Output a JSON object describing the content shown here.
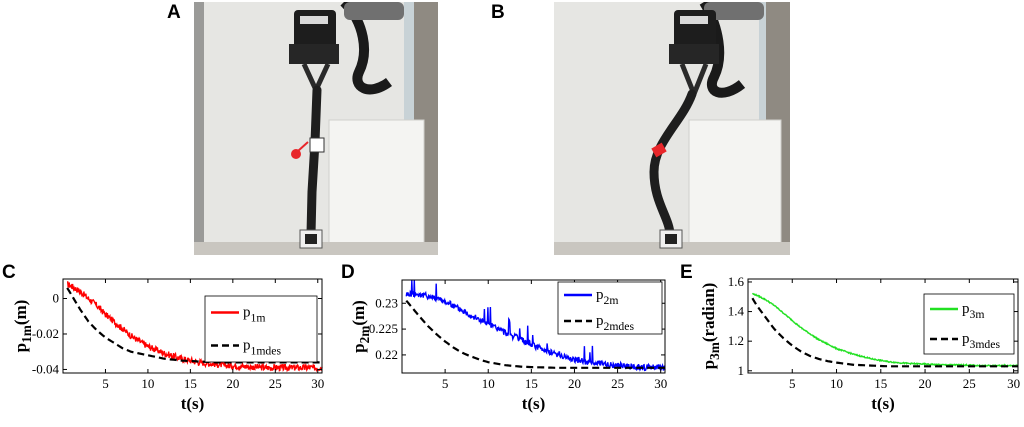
{
  "panels": {
    "A": "A",
    "B": "B",
    "C": "C",
    "D": "D",
    "E": "E"
  },
  "photos": [
    {
      "panel": "A",
      "marker_color": "#e8262a",
      "marker_shape": "round-pin",
      "deformation": "straight"
    },
    {
      "panel": "B",
      "marker_color": "#e8262a",
      "marker_shape": "square-tag",
      "deformation": "curved"
    }
  ],
  "chart_data": [
    {
      "panel": "C",
      "type": "line",
      "ylabel": "p",
      "ylabel_sub": "1m",
      "ylabel_unit": "(m)",
      "xlabel": "t(s)",
      "xlim": [
        0,
        30.5
      ],
      "ylim": [
        -0.042,
        0.011
      ],
      "xticks": [
        5,
        10,
        15,
        20,
        25,
        30
      ],
      "yticks": [
        0,
        -0.02,
        -0.04
      ],
      "ytick_labels": [
        "0",
        "-0.02",
        "-0.04"
      ],
      "grid": false,
      "legend": "right",
      "series": [
        {
          "name": "p",
          "name_sub": "1m",
          "color": "#ff0000",
          "style": "solid-noisy",
          "x": [
            0.5,
            1,
            2,
            3,
            4,
            5,
            6,
            7,
            8,
            9,
            10,
            12,
            14,
            16,
            18,
            20,
            22,
            24,
            26,
            28,
            30.5
          ],
          "y": [
            0.008,
            0.007,
            0.004,
            0.0,
            -0.004,
            -0.009,
            -0.013,
            -0.017,
            -0.021,
            -0.024,
            -0.027,
            -0.031,
            -0.034,
            -0.036,
            -0.037,
            -0.038,
            -0.0385,
            -0.039,
            -0.039,
            -0.039,
            -0.039
          ],
          "noise": 0.0018
        },
        {
          "name": "p",
          "name_sub": "1mdes",
          "color": "#000000",
          "style": "dashed",
          "x": [
            0.5,
            1,
            2,
            3,
            4,
            5,
            6,
            7,
            8,
            9,
            10,
            12,
            14,
            16,
            18,
            20,
            22,
            24,
            26,
            28,
            30.5
          ],
          "y": [
            0.006,
            0.002,
            -0.006,
            -0.013,
            -0.018,
            -0.022,
            -0.025,
            -0.028,
            -0.03,
            -0.031,
            -0.032,
            -0.034,
            -0.035,
            -0.0355,
            -0.036,
            -0.036,
            -0.036,
            -0.036,
            -0.036,
            -0.036,
            -0.036
          ]
        }
      ]
    },
    {
      "panel": "D",
      "type": "line",
      "ylabel": "p",
      "ylabel_sub": "2m",
      "ylabel_unit": "(m)",
      "xlabel": "t(s)",
      "xlim": [
        0,
        30.5
      ],
      "ylim": [
        0.2165,
        0.2345
      ],
      "xticks": [
        5,
        10,
        15,
        20,
        25,
        30
      ],
      "yticks": [
        0.23,
        0.225,
        0.22
      ],
      "ytick_labels": [
        "0.23",
        "0.225",
        "0.22"
      ],
      "grid": false,
      "legend": "top-right",
      "series": [
        {
          "name": "p",
          "name_sub": "2m",
          "color": "#0000ff",
          "style": "solid-noisy-spiky",
          "x": [
            0.5,
            1,
            2,
            3,
            4,
            5,
            6,
            7,
            8,
            9,
            10,
            12,
            14,
            16,
            18,
            20,
            22,
            24,
            26,
            28,
            30.5
          ],
          "y": [
            0.2318,
            0.2318,
            0.2317,
            0.2314,
            0.231,
            0.2303,
            0.2295,
            0.2286,
            0.2277,
            0.2268,
            0.226,
            0.2243,
            0.2228,
            0.2213,
            0.2201,
            0.2191,
            0.2185,
            0.2181,
            0.2178,
            0.2176,
            0.2175
          ],
          "noise": 0.0006
        },
        {
          "name": "p",
          "name_sub": "2mdes",
          "color": "#000000",
          "style": "dashed",
          "x": [
            0.5,
            1,
            2,
            3,
            4,
            5,
            6,
            7,
            8,
            9,
            10,
            12,
            14,
            16,
            18,
            20,
            22,
            24,
            26,
            28,
            30.5
          ],
          "y": [
            0.2305,
            0.2295,
            0.2275,
            0.2256,
            0.224,
            0.2226,
            0.2214,
            0.2204,
            0.2197,
            0.2191,
            0.2186,
            0.218,
            0.2177,
            0.2176,
            0.2175,
            0.2175,
            0.2175,
            0.2175,
            0.2175,
            0.2175,
            0.2175
          ]
        }
      ]
    },
    {
      "panel": "E",
      "type": "line",
      "ylabel": "p",
      "ylabel_sub": "3m",
      "ylabel_unit": "(radian)",
      "xlabel": "t(s)",
      "xlim": [
        0,
        30.5
      ],
      "ylim": [
        0.985,
        1.62
      ],
      "xticks": [
        5,
        10,
        15,
        20,
        25,
        30
      ],
      "yticks": [
        1.6,
        1.4,
        1.2,
        1
      ],
      "ytick_labels": [
        "1.6",
        "1.4",
        "1.2",
        "1"
      ],
      "grid": false,
      "legend": "right",
      "series": [
        {
          "name": "p",
          "name_sub": "3m",
          "color": "#22e022",
          "style": "solid",
          "x": [
            0.5,
            1,
            2,
            3,
            4,
            5,
            6,
            7,
            8,
            9,
            10,
            12,
            14,
            16,
            18,
            20,
            22,
            24,
            26,
            28,
            30.5
          ],
          "y": [
            1.52,
            1.51,
            1.48,
            1.44,
            1.39,
            1.34,
            1.29,
            1.25,
            1.21,
            1.18,
            1.15,
            1.11,
            1.08,
            1.06,
            1.05,
            1.045,
            1.04,
            1.04,
            1.035,
            1.035,
            1.035
          ],
          "noise": 0.004
        },
        {
          "name": "p",
          "name_sub": "3mdes",
          "color": "#000000",
          "style": "dashed",
          "x": [
            0.5,
            1,
            2,
            3,
            4,
            5,
            6,
            7,
            8,
            9,
            10,
            12,
            14,
            16,
            18,
            20,
            22,
            24,
            26,
            28,
            30.5
          ],
          "y": [
            1.49,
            1.44,
            1.36,
            1.28,
            1.22,
            1.17,
            1.13,
            1.1,
            1.08,
            1.065,
            1.055,
            1.04,
            1.035,
            1.03,
            1.03,
            1.03,
            1.03,
            1.03,
            1.03,
            1.03,
            1.03
          ]
        }
      ]
    }
  ]
}
